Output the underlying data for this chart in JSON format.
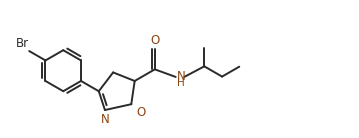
{
  "background_color": "#ffffff",
  "line_color": "#2a2a2a",
  "N_color": "#8B4513",
  "O_color": "#8B4513",
  "Br_color": "#2a2a2a",
  "font_size": 8.5,
  "line_width": 1.4,
  "figsize": [
    3.59,
    1.38
  ],
  "dpi": 100,
  "xlim": [
    0.0,
    10.5
  ],
  "ylim": [
    0.0,
    3.8
  ]
}
